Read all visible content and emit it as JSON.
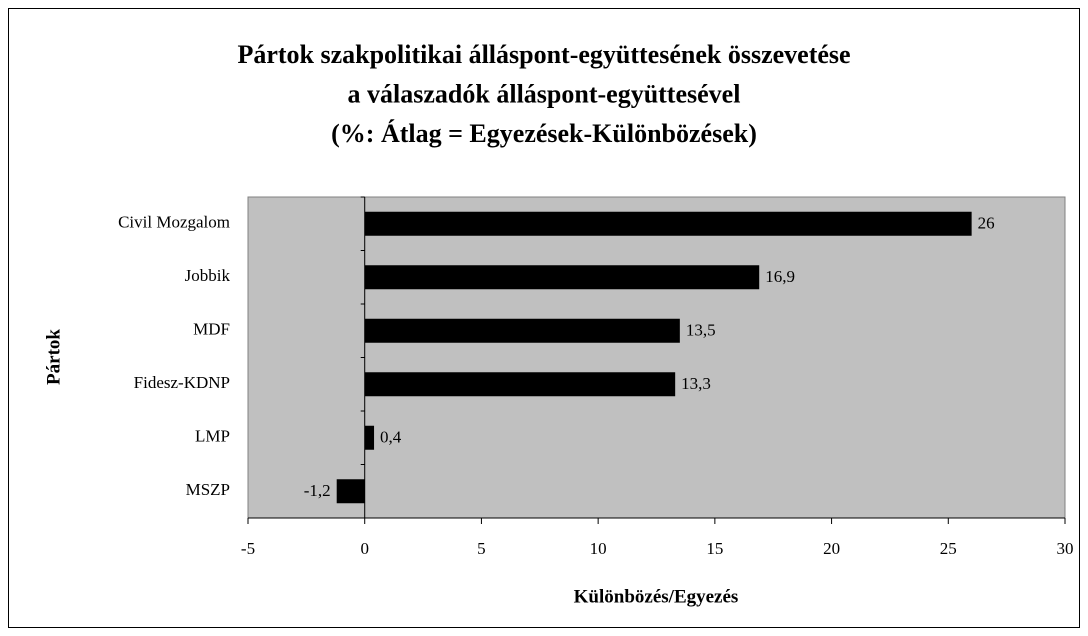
{
  "chart_data": {
    "type": "barh",
    "title": [
      "Pártok szakpolitikai álláspont-együttesének összevetése",
      "a válaszadók álláspont-együttesével",
      "(%: Átlag = Egyezések-Különbözések)"
    ],
    "xlabel": "Különbözés/Egyezés",
    "ylabel": "Pártok",
    "categories": [
      "Civil Mozgalom",
      "Jobbik",
      "MDF",
      "Fidesz-KDNP",
      "LMP",
      "MSZP"
    ],
    "values": [
      26,
      16.9,
      13.5,
      13.3,
      0.4,
      -1.2
    ],
    "value_labels": [
      "26",
      "16,9",
      "13,5",
      "13,3",
      "0,4",
      "-1,2"
    ],
    "color": "#000000",
    "background": "#c0c0c0",
    "xlim": [
      -5,
      30
    ],
    "xticks": [
      -5,
      0,
      5,
      10,
      15,
      20,
      25,
      30
    ]
  }
}
